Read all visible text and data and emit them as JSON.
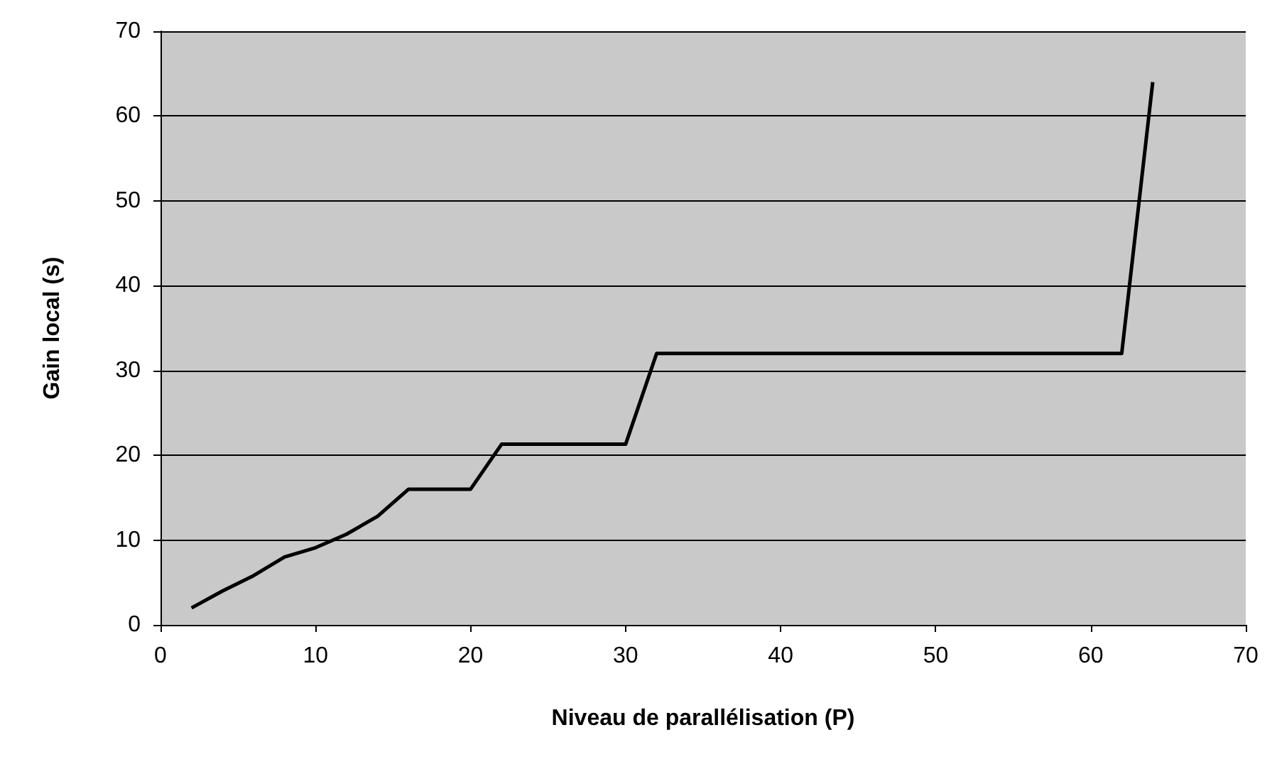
{
  "chart_data": {
    "type": "line",
    "xlabel": "Niveau de parallélisation (P)",
    "ylabel": "Gain local (s)",
    "x": [
      2,
      4,
      6,
      8,
      10,
      12,
      14,
      16,
      20,
      22,
      30,
      32,
      62,
      64
    ],
    "series": [
      {
        "color": "#000000",
        "values": [
          2,
          4,
          5.8,
          8,
          9.1,
          10.7,
          12.8,
          16,
          16,
          21.3,
          21.3,
          32,
          32,
          64
        ]
      }
    ],
    "xlim": [
      0,
      70
    ],
    "xticks": [
      0,
      10,
      20,
      30,
      40,
      50,
      60,
      70
    ],
    "ylim": [
      0,
      70
    ],
    "yticks": [
      0,
      10,
      20,
      30,
      40,
      50,
      60,
      70
    ],
    "grid": "y",
    "marker": "none",
    "line_style": "solid"
  }
}
